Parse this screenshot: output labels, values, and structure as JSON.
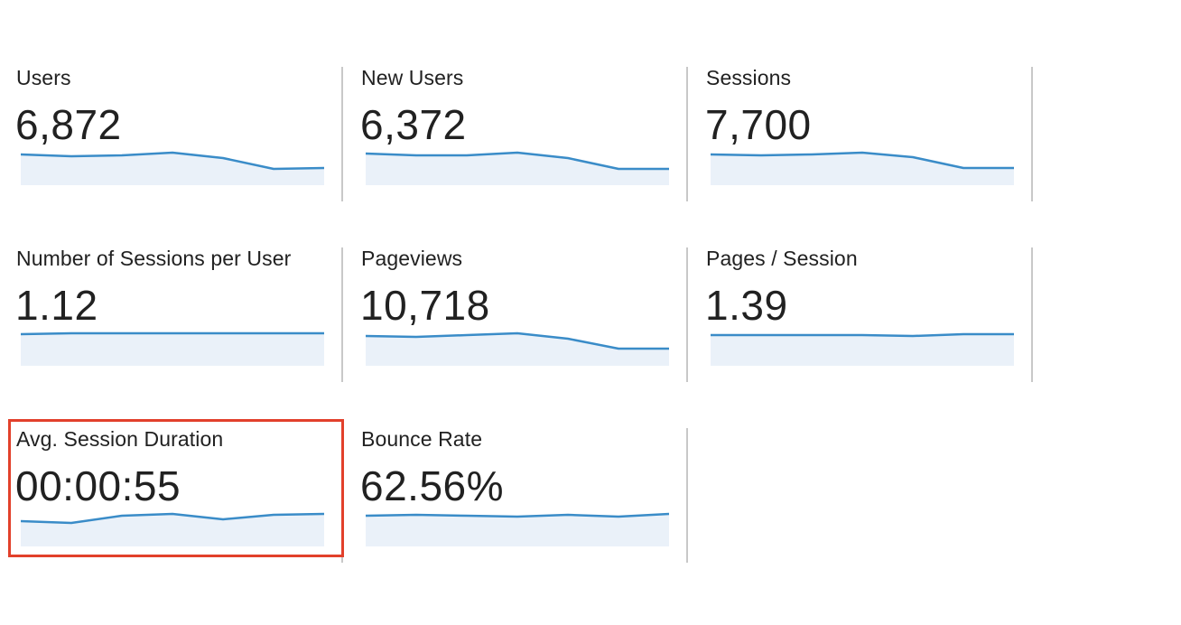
{
  "metrics": [
    {
      "label": "Users",
      "value": "6,872",
      "spark": [
        171,
        173,
        172,
        169,
        175,
        187,
        186
      ]
    },
    {
      "label": "New Users",
      "value": "6,372",
      "spark": [
        170,
        172,
        172,
        169,
        175,
        187,
        187
      ]
    },
    {
      "label": "Sessions",
      "value": "7,700",
      "spark": [
        171,
        172,
        171,
        169,
        174,
        186,
        186
      ]
    },
    {
      "label": "Number of Sessions per User",
      "value": "1.12",
      "spark": [
        370,
        369,
        369,
        369,
        369,
        369,
        369
      ]
    },
    {
      "label": "Pageviews",
      "value": "10,718",
      "spark": [
        372,
        373,
        371,
        369,
        375,
        386,
        386
      ]
    },
    {
      "label": "Pages / Session",
      "value": "1.39",
      "spark": [
        371,
        371,
        371,
        371,
        372,
        370,
        370
      ]
    },
    {
      "label": "Avg. Session Duration",
      "value": "00:00:55",
      "spark": [
        577,
        579,
        571,
        569,
        575,
        570,
        569
      ]
    },
    {
      "label": "Bounce Rate",
      "value": "62.56%",
      "spark": [
        571,
        570,
        571,
        572,
        570,
        572,
        569
      ]
    }
  ],
  "highlighted_metric": "Avg. Session Duration",
  "colors": {
    "line": "#3a8cc8",
    "fill": "#eaf1f9",
    "highlight_border": "#e2402b",
    "divider": "#c8c8c8",
    "text": "#212121"
  }
}
